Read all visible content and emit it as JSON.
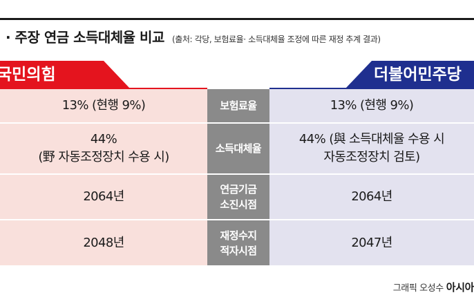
{
  "header": {
    "title": "· 주장 연금 소득대체율 비교",
    "source": "(출처: 각당, 보험료율· 소득대체율 조정에 따른 재정 추계 결과)"
  },
  "parties": {
    "left": "국민의힘",
    "right": "더불어민주당"
  },
  "colors": {
    "left_party": "#e4141e",
    "right_party": "#1f2f8f",
    "left_cell": "#f9e0dc",
    "right_cell": "#e3e2ef",
    "mid_cell": "#8a8a8a"
  },
  "rows": [
    {
      "label": [
        "보험료율"
      ],
      "left": [
        "13% (현행 9%)"
      ],
      "right": [
        "13% (현행 9%)"
      ]
    },
    {
      "label": [
        "소득대체율"
      ],
      "left": [
        "44%",
        "(野 자동조정장치 수용 시)"
      ],
      "right": [
        "44% (與 소득대체율 수용 시",
        "자동조정장치 검토)"
      ]
    },
    {
      "label": [
        "연금기금",
        "소진시점"
      ],
      "left": [
        "2064년"
      ],
      "right": [
        "2064년"
      ]
    },
    {
      "label": [
        "재정수지",
        "적자시점"
      ],
      "left": [
        "2048년"
      ],
      "right": [
        "2047년"
      ]
    }
  ],
  "credit": {
    "text": "그래픽 오성수",
    "brand": "아시아"
  }
}
